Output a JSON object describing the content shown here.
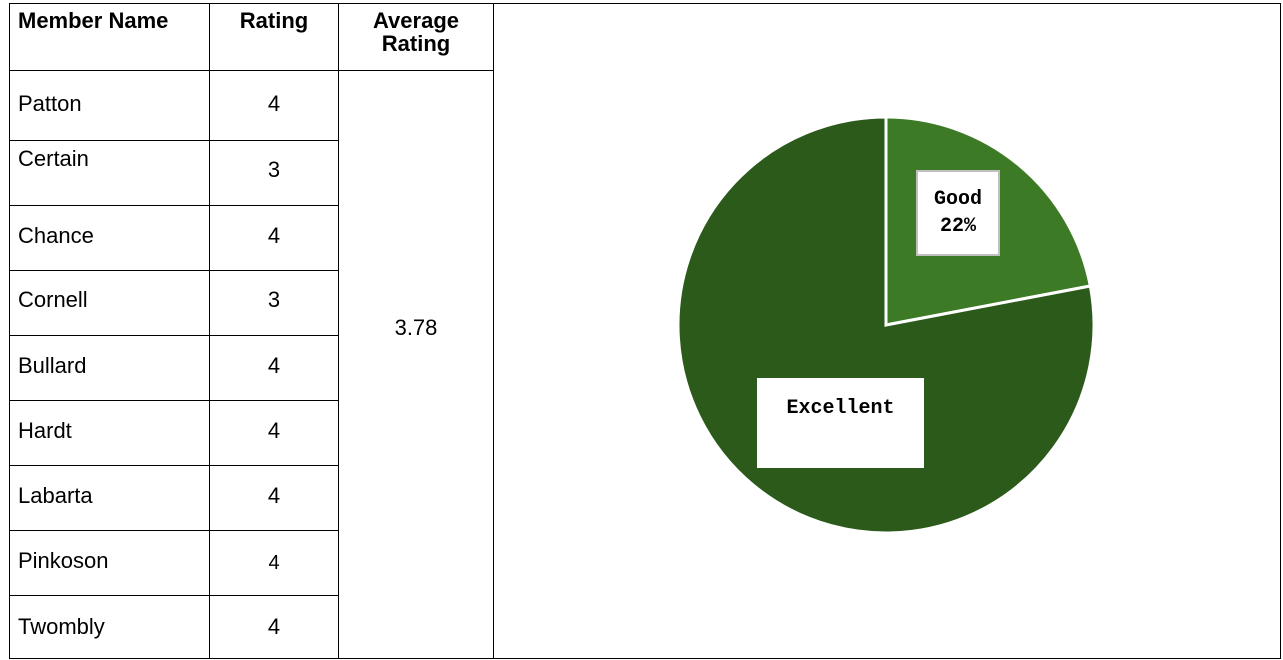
{
  "table": {
    "headers": {
      "member_name": "Member Name",
      "rating": "Rating",
      "average_rating": "Average Rating"
    },
    "rows": [
      {
        "name": "Patton",
        "rating": "4"
      },
      {
        "name": "Certain",
        "rating": "3"
      },
      {
        "name": "Chance",
        "rating": "4"
      },
      {
        "name": "Cornell",
        "rating": "3"
      },
      {
        "name": "Bullard",
        "rating": "4"
      },
      {
        "name": "Hardt",
        "rating": "4"
      },
      {
        "name": "Labarta",
        "rating": "4"
      },
      {
        "name": "Pinkoson",
        "rating": "4"
      },
      {
        "name": "Twombly",
        "rating": "4"
      }
    ],
    "average_value": "3.78"
  },
  "chart_data": {
    "type": "pie",
    "slices": [
      {
        "label": "Good",
        "value": 22,
        "value_label": "22%",
        "color": "#3d7a25"
      },
      {
        "label": "Excellent",
        "value": 78,
        "color": "#2b5a1b"
      }
    ]
  }
}
